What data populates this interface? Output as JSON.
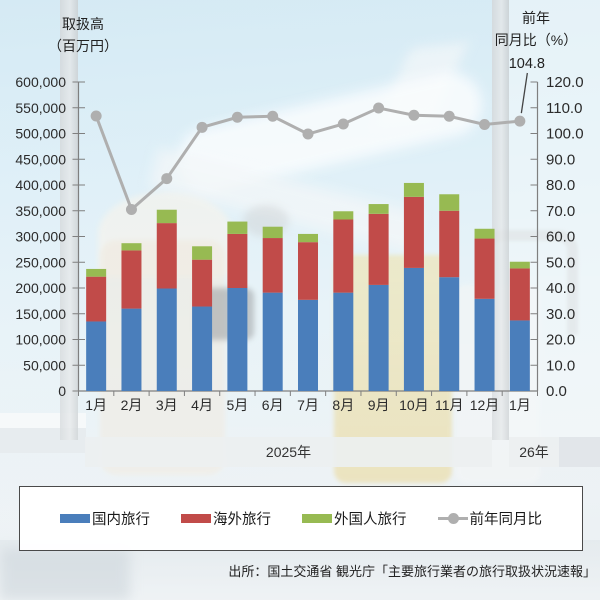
{
  "titles": {
    "volume_line1": "取扱高",
    "volume_line2": "（百万円）",
    "ratio_line1": "前年",
    "ratio_line2": "同月比（%）"
  },
  "chart_data": {
    "type": "bar",
    "subtype": "stacked-bar-with-line",
    "categories": [
      "1月",
      "2月",
      "3月",
      "4月",
      "5月",
      "6月",
      "7月",
      "8月",
      "9月",
      "10月",
      "11月",
      "12月",
      "1月"
    ],
    "year_groups": [
      {
        "label": "2025年"
      },
      {
        "label": "26年"
      }
    ],
    "series": [
      {
        "name": "国内旅行",
        "type": "bar",
        "color": "#4A7EBB",
        "values": [
          135000,
          160000,
          199000,
          164000,
          200000,
          191000,
          177000,
          191000,
          206000,
          239000,
          221000,
          179000,
          137000
        ]
      },
      {
        "name": "海外旅行",
        "type": "bar",
        "color": "#C14B49",
        "values": [
          87000,
          113000,
          127000,
          91000,
          105000,
          106000,
          112000,
          142000,
          138000,
          138000,
          129000,
          117000,
          101000
        ]
      },
      {
        "name": "外国人旅行",
        "type": "bar",
        "color": "#97BA52",
        "values": [
          15000,
          14000,
          26000,
          26000,
          24000,
          22000,
          16000,
          16000,
          19000,
          27000,
          32000,
          19000,
          13000
        ]
      },
      {
        "name": "前年同月比",
        "type": "line",
        "axis": "right",
        "color": "#AFAFAF",
        "values": [
          106.8,
          70.5,
          82.5,
          102.4,
          106.3,
          106.7,
          99.8,
          103.7,
          109.9,
          107.1,
          106.7,
          103.5,
          104.8
        ]
      }
    ],
    "left_axis": {
      "min": 0,
      "max": 600000,
      "step": 50000,
      "label": "取扱高（百万円）"
    },
    "right_axis": {
      "min": 0,
      "max": 120,
      "step": 10,
      "label": "前年同月比（%）"
    },
    "annotation": {
      "text": "104.8",
      "category_index": 12
    },
    "grid": false,
    "legend_position": "bottom"
  },
  "legend": {
    "items": [
      {
        "label": "国内旅行",
        "color": "#4A7EBB",
        "marker": "bar"
      },
      {
        "label": "海外旅行",
        "color": "#C14B49",
        "marker": "bar"
      },
      {
        "label": "外国人旅行",
        "color": "#97BA52",
        "marker": "bar"
      },
      {
        "label": "前年同月比",
        "color": "#AFAFAF",
        "marker": "line"
      }
    ]
  },
  "footer": {
    "source": "出所：国土交通省 観光庁「主要旅行業者の旅行取扱状況速報」"
  }
}
